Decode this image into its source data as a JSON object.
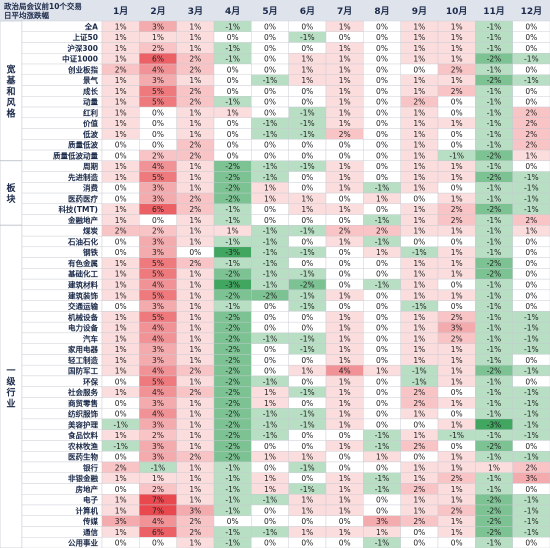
{
  "chart_data": {
    "type": "heatmap",
    "title": "政治局会议前10个交易日平均涨跌幅",
    "columns": [
      "1月",
      "2月",
      "3月",
      "4月",
      "5月",
      "6月",
      "7月",
      "8月",
      "9月",
      "10月",
      "11月",
      "12月"
    ],
    "groups": [
      {
        "label": "宽基和风格",
        "rows": [
          {
            "name": "全A",
            "values": [
              1,
              3,
              1,
              -1,
              0,
              0,
              1,
              0,
              1,
              1,
              -1,
              0
            ]
          },
          {
            "name": "上证50",
            "values": [
              1,
              1,
              1,
              0,
              0,
              -1,
              0,
              0,
              1,
              1,
              -1,
              0
            ]
          },
          {
            "name": "沪深300",
            "values": [
              1,
              2,
              1,
              -1,
              0,
              0,
              1,
              0,
              1,
              1,
              -1,
              0
            ]
          },
          {
            "name": "中证1000",
            "values": [
              1,
              6,
              2,
              -1,
              0,
              1,
              1,
              0,
              1,
              1,
              -2,
              -1
            ]
          },
          {
            "name": "创业板指",
            "values": [
              2,
              4,
              2,
              0,
              0,
              1,
              1,
              0,
              0,
              2,
              -1,
              0
            ]
          },
          {
            "name": "景气",
            "values": [
              1,
              3,
              1,
              0,
              -1,
              1,
              1,
              0,
              1,
              1,
              -2,
              -1
            ]
          },
          {
            "name": "成长",
            "values": [
              1,
              5,
              2,
              0,
              0,
              0,
              1,
              0,
              1,
              2,
              -1,
              0
            ]
          },
          {
            "name": "动量",
            "values": [
              1,
              5,
              2,
              -1,
              0,
              0,
              1,
              0,
              2,
              0,
              -1,
              0
            ]
          },
          {
            "name": "红利",
            "values": [
              1,
              0,
              1,
              1,
              0,
              -1,
              1,
              0,
              1,
              0,
              -1,
              2
            ]
          },
          {
            "name": "价值",
            "values": [
              1,
              0,
              1,
              0,
              -1,
              -1,
              1,
              0,
              1,
              1,
              -1,
              2
            ]
          },
          {
            "name": "低波",
            "values": [
              1,
              0,
              1,
              0,
              -1,
              -1,
              2,
              0,
              1,
              0,
              -1,
              2
            ]
          },
          {
            "name": "质量低波",
            "values": [
              0,
              0,
              2,
              0,
              0,
              0,
              0,
              0,
              1,
              0,
              -1,
              2
            ]
          },
          {
            "name": "质量低波动量",
            "values": [
              0,
              2,
              2,
              0,
              0,
              0,
              0,
              0,
              1,
              -1,
              -2,
              1
            ]
          }
        ]
      },
      {
        "label": "板块",
        "rows": [
          {
            "name": "周期",
            "values": [
              1,
              4,
              1,
              -2,
              -1,
              -1,
              1,
              0,
              1,
              1,
              -1,
              0
            ]
          },
          {
            "name": "先进制造",
            "values": [
              1,
              5,
              1,
              -2,
              -1,
              0,
              1,
              0,
              1,
              1,
              -2,
              -1
            ]
          },
          {
            "name": "消费",
            "values": [
              0,
              3,
              1,
              -2,
              1,
              0,
              1,
              -1,
              1,
              0,
              -1,
              -1
            ]
          },
          {
            "name": "医药医疗",
            "values": [
              0,
              3,
              2,
              -2,
              1,
              1,
              0,
              1,
              0,
              1,
              -1,
              -1
            ]
          },
          {
            "name": "科技(TMT)",
            "values": [
              1,
              6,
              2,
              -1,
              0,
              1,
              1,
              0,
              1,
              2,
              -2,
              -1
            ]
          },
          {
            "name": "金融地产",
            "values": [
              1,
              0,
              1,
              -1,
              0,
              0,
              0,
              -1,
              1,
              2,
              -1,
              2
            ]
          }
        ]
      },
      {
        "label": "一级行业",
        "rows": [
          {
            "name": "煤炭",
            "values": [
              2,
              2,
              1,
              1,
              -1,
              -1,
              2,
              2,
              1,
              1,
              -1,
              1
            ]
          },
          {
            "name": "石油石化",
            "values": [
              0,
              3,
              1,
              -1,
              -1,
              0,
              1,
              -1,
              0,
              0,
              -1,
              0
            ]
          },
          {
            "name": "钢铁",
            "values": [
              0,
              3,
              0,
              -3,
              -1,
              -1,
              0,
              1,
              -1,
              1,
              -1,
              0
            ]
          },
          {
            "name": "有色金属",
            "values": [
              1,
              5,
              2,
              -1,
              -1,
              0,
              0,
              0,
              1,
              1,
              -2,
              0
            ]
          },
          {
            "name": "基础化工",
            "values": [
              1,
              5,
              1,
              -2,
              -1,
              -1,
              0,
              0,
              1,
              1,
              -2,
              0
            ]
          },
          {
            "name": "建筑材料",
            "values": [
              1,
              4,
              1,
              -3,
              -1,
              -2,
              0,
              -1,
              1,
              0,
              -1,
              0
            ]
          },
          {
            "name": "建筑装饰",
            "values": [
              1,
              5,
              1,
              -2,
              -2,
              -1,
              1,
              0,
              1,
              1,
              -1,
              0
            ]
          },
          {
            "name": "交通运输",
            "values": [
              0,
              3,
              1,
              -1,
              0,
              -1,
              0,
              0,
              -1,
              0,
              -1,
              0
            ]
          },
          {
            "name": "机械设备",
            "values": [
              1,
              5,
              1,
              -2,
              0,
              0,
              1,
              0,
              1,
              2,
              -1,
              -1
            ]
          },
          {
            "name": "电力设备",
            "values": [
              1,
              4,
              1,
              -2,
              0,
              0,
              1,
              0,
              1,
              3,
              -1,
              -1
            ]
          },
          {
            "name": "汽车",
            "values": [
              1,
              4,
              1,
              -2,
              -1,
              -1,
              1,
              0,
              1,
              2,
              -1,
              -1
            ]
          },
          {
            "name": "家用电器",
            "values": [
              1,
              3,
              1,
              -2,
              0,
              -1,
              1,
              0,
              1,
              1,
              -1,
              -1
            ]
          },
          {
            "name": "轻工制造",
            "values": [
              1,
              3,
              1,
              -2,
              0,
              0,
              1,
              0,
              1,
              1,
              -1,
              0
            ]
          },
          {
            "name": "国防军工",
            "values": [
              1,
              4,
              2,
              -2,
              0,
              1,
              4,
              1,
              -1,
              1,
              -2,
              -1
            ]
          },
          {
            "name": "环保",
            "values": [
              0,
              5,
              1,
              -2,
              -1,
              0,
              1,
              0,
              -1,
              1,
              -1,
              0
            ]
          },
          {
            "name": "社会服务",
            "values": [
              1,
              4,
              2,
              -2,
              1,
              -1,
              1,
              0,
              2,
              0,
              -1,
              -1
            ]
          },
          {
            "name": "商贸零售",
            "values": [
              0,
              3,
              1,
              -2,
              1,
              0,
              1,
              0,
              2,
              1,
              -1,
              -1
            ]
          },
          {
            "name": "纺织服饰",
            "values": [
              0,
              4,
              1,
              -2,
              -1,
              -1,
              1,
              0,
              1,
              0,
              -1,
              -1
            ]
          },
          {
            "name": "美容护理",
            "values": [
              -1,
              3,
              1,
              -2,
              -1,
              -1,
              1,
              0,
              0,
              1,
              -3,
              -1
            ]
          },
          {
            "name": "食品饮料",
            "values": [
              1,
              2,
              1,
              -2,
              -1,
              0,
              0,
              -1,
              1,
              -1,
              -1,
              -1
            ]
          },
          {
            "name": "农林牧渔",
            "values": [
              -1,
              3,
              1,
              -2,
              0,
              0,
              1,
              -1,
              2,
              0,
              -2,
              0
            ]
          },
          {
            "name": "医药生物",
            "values": [
              0,
              3,
              2,
              -2,
              1,
              1,
              0,
              1,
              0,
              1,
              -1,
              -1
            ]
          },
          {
            "name": "银行",
            "values": [
              2,
              -1,
              1,
              -1,
              0,
              -1,
              0,
              0,
              1,
              1,
              1,
              2
            ]
          },
          {
            "name": "非银金融",
            "values": [
              1,
              1,
              1,
              -1,
              1,
              0,
              1,
              -1,
              1,
              2,
              -1,
              3
            ]
          },
          {
            "name": "房地产",
            "values": [
              0,
              2,
              1,
              -1,
              1,
              -1,
              1,
              -1,
              2,
              1,
              -1,
              0
            ]
          },
          {
            "name": "电子",
            "values": [
              1,
              7,
              1,
              -1,
              -1,
              1,
              1,
              0,
              1,
              1,
              -2,
              -1
            ]
          },
          {
            "name": "计算机",
            "values": [
              1,
              7,
              3,
              -1,
              0,
              1,
              1,
              0,
              1,
              2,
              -2,
              -1
            ]
          },
          {
            "name": "传媒",
            "values": [
              3,
              4,
              2,
              0,
              0,
              0,
              0,
              3,
              2,
              1,
              -2,
              -1
            ]
          },
          {
            "name": "通信",
            "values": [
              1,
              6,
              2,
              -1,
              -1,
              1,
              1,
              1,
              0,
              1,
              -2,
              -1
            ]
          },
          {
            "name": "公用事业",
            "values": [
              0,
              0,
              1,
              -1,
              0,
              0,
              0,
              -1,
              0,
              0,
              -1,
              0
            ]
          }
        ]
      }
    ],
    "colors": {
      "header_bg": "#dfe3ec",
      "grid": "#c6cad2",
      "neg": "#2b9c4e",
      "pos": "#e8484e"
    }
  }
}
